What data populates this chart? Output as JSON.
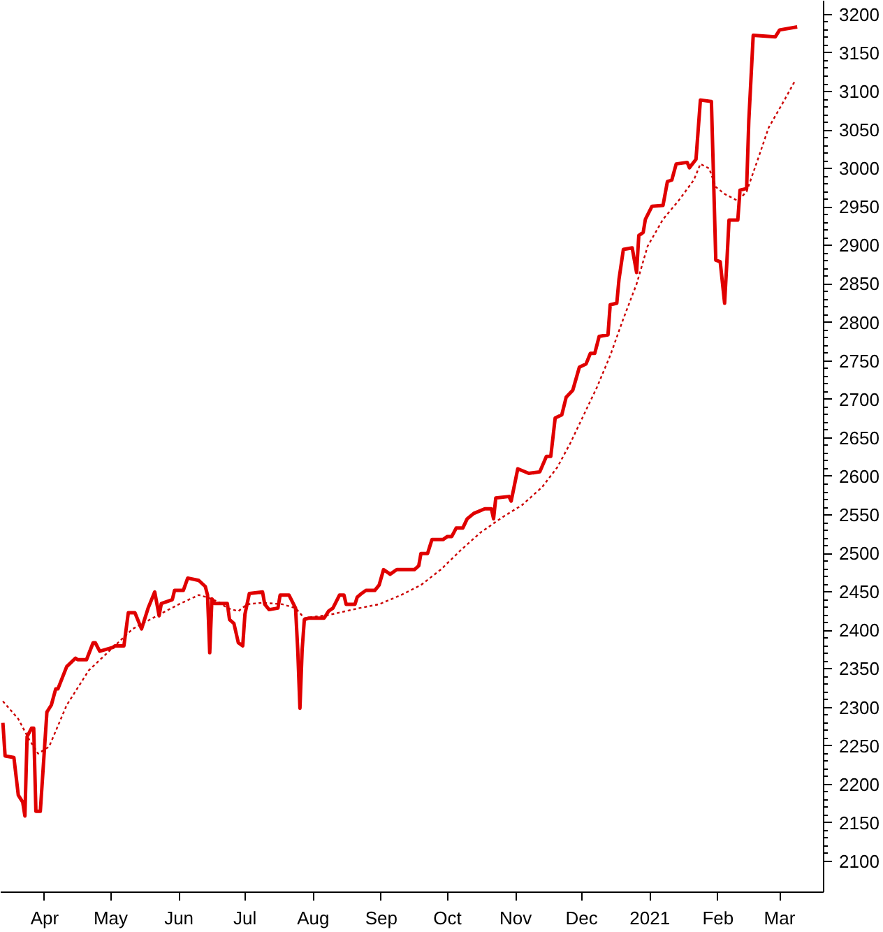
{
  "chart_data": {
    "type": "line",
    "xlim": [
      "2020-03-12",
      "2021-03-21"
    ],
    "ylim": [
      2060,
      3218
    ],
    "yticks": [
      2100,
      2150,
      2200,
      2250,
      2300,
      2350,
      2400,
      2450,
      2500,
      2550,
      2600,
      2650,
      2700,
      2750,
      2800,
      2850,
      2900,
      2950,
      3000,
      3050,
      3100,
      3150,
      3200
    ],
    "xticks": [
      {
        "value": "2020-04-01",
        "label": "Apr"
      },
      {
        "value": "2020-05-01",
        "label": "May"
      },
      {
        "value": "2020-06-01",
        "label": "Jun"
      },
      {
        "value": "2020-07-01",
        "label": "Jul"
      },
      {
        "value": "2020-08-01",
        "label": "Aug"
      },
      {
        "value": "2020-09-01",
        "label": "Sep"
      },
      {
        "value": "2020-10-01",
        "label": "Oct"
      },
      {
        "value": "2020-11-01",
        "label": "Nov"
      },
      {
        "value": "2020-12-01",
        "label": "Dec"
      },
      {
        "value": "2021-01-01",
        "label": "2021"
      },
      {
        "value": "2021-02-01",
        "label": "Feb"
      },
      {
        "value": "2021-03-01",
        "label": "Mar"
      }
    ],
    "grid": false,
    "series": [
      {
        "color": "#e00000",
        "line_style": "solid",
        "x": [
          "2020-03-13",
          "2020-03-14",
          "2020-03-18",
          "2020-03-20",
          "2020-03-22",
          "2020-03-23",
          "2020-03-24",
          "2020-03-26",
          "2020-03-27",
          "2020-03-28",
          "2020-03-30",
          "2020-04-02",
          "2020-04-04",
          "2020-04-06",
          "2020-04-07",
          "2020-04-11",
          "2020-04-15",
          "2020-04-16",
          "2020-04-20",
          "2020-04-23",
          "2020-04-24",
          "2020-04-26",
          "2020-05-02",
          "2020-05-03",
          "2020-05-07",
          "2020-05-09",
          "2020-05-12",
          "2020-05-15",
          "2020-05-18",
          "2020-05-21",
          "2020-05-23",
          "2020-05-24",
          "2020-05-29",
          "2020-05-30",
          "2020-06-03",
          "2020-06-05",
          "2020-06-10",
          "2020-06-13",
          "2020-06-14",
          "2020-06-15",
          "2020-06-16",
          "2020-06-17",
          "2020-06-23",
          "2020-06-24",
          "2020-06-26",
          "2020-06-28",
          "2020-06-30",
          "2020-07-01",
          "2020-07-03",
          "2020-07-09",
          "2020-07-10",
          "2020-07-12",
          "2020-07-16",
          "2020-07-17",
          "2020-07-21",
          "2020-07-24",
          "2020-07-25",
          "2020-07-26",
          "2020-07-27",
          "2020-07-28",
          "2020-07-30",
          "2020-08-06",
          "2020-08-08",
          "2020-08-10",
          "2020-08-13",
          "2020-08-15",
          "2020-08-16",
          "2020-08-20",
          "2020-08-21",
          "2020-08-23",
          "2020-08-25",
          "2020-08-29",
          "2020-08-31",
          "2020-09-02",
          "2020-09-05",
          "2020-09-08",
          "2020-09-16",
          "2020-09-18",
          "2020-09-19",
          "2020-09-22",
          "2020-09-24",
          "2020-09-29",
          "2020-10-01",
          "2020-10-03",
          "2020-10-05",
          "2020-10-08",
          "2020-10-10",
          "2020-10-13",
          "2020-10-18",
          "2020-10-21",
          "2020-10-22",
          "2020-10-23",
          "2020-10-29",
          "2020-10-30",
          "2020-11-02",
          "2020-11-07",
          "2020-11-12",
          "2020-11-15",
          "2020-11-17",
          "2020-11-19",
          "2020-11-22",
          "2020-11-24",
          "2020-11-27",
          "2020-11-30",
          "2020-12-03",
          "2020-12-05",
          "2020-12-07",
          "2020-12-09",
          "2020-12-13",
          "2020-12-14",
          "2020-12-17",
          "2020-12-18",
          "2020-12-20",
          "2020-12-24",
          "2020-12-26",
          "2020-12-27",
          "2020-12-29",
          "2020-12-30",
          "2021-01-02",
          "2021-01-07",
          "2021-01-09",
          "2021-01-11",
          "2021-01-13",
          "2021-01-18",
          "2021-01-19",
          "2021-01-22",
          "2021-01-24",
          "2021-01-29",
          "2021-01-30",
          "2021-01-31",
          "2021-02-02",
          "2021-02-04",
          "2021-02-05",
          "2021-02-06",
          "2021-02-10",
          "2021-02-11",
          "2021-02-14",
          "2021-02-15",
          "2021-02-17",
          "2021-02-27",
          "2021-03-01",
          "2021-03-09"
        ],
        "values": [
          2280,
          2237,
          2235,
          2186,
          2177,
          2159,
          2262,
          2273,
          2273,
          2165,
          2165,
          2294,
          2303,
          2324,
          2324,
          2353,
          2364,
          2362,
          2362,
          2384,
          2384,
          2373,
          2378,
          2380,
          2380,
          2423,
          2423,
          2402,
          2429,
          2450,
          2419,
          2435,
          2440,
          2452,
          2452,
          2468,
          2465,
          2457,
          2446,
          2371,
          2441,
          2435,
          2435,
          2414,
          2409,
          2384,
          2380,
          2421,
          2448,
          2450,
          2434,
          2427,
          2429,
          2446,
          2446,
          2429,
          2375,
          2299,
          2375,
          2414,
          2416,
          2416,
          2425,
          2429,
          2446,
          2446,
          2434,
          2434,
          2443,
          2448,
          2452,
          2452,
          2459,
          2479,
          2473,
          2479,
          2479,
          2484,
          2500,
          2500,
          2518,
          2518,
          2522,
          2522,
          2533,
          2533,
          2545,
          2552,
          2558,
          2558,
          2545,
          2572,
          2574,
          2568,
          2610,
          2604,
          2606,
          2626,
          2626,
          2676,
          2680,
          2703,
          2712,
          2742,
          2746,
          2760,
          2760,
          2782,
          2784,
          2823,
          2825,
          2856,
          2895,
          2897,
          2865,
          2913,
          2917,
          2934,
          2951,
          2952,
          2983,
          2985,
          3006,
          3008,
          3001,
          3012,
          3089,
          3087,
          2985,
          2881,
          2879,
          2825,
          2877,
          2933,
          2933,
          2972,
          2974,
          3062,
          3173,
          3171,
          3180,
          3184
        ]
      },
      {
        "color": "#cc0000",
        "line_style": "dotted",
        "x": [
          "2020-03-13",
          "2020-03-20",
          "2020-03-25",
          "2020-03-29",
          "2020-04-03",
          "2020-04-11",
          "2020-04-21",
          "2020-05-01",
          "2020-05-11",
          "2020-05-22",
          "2020-06-01",
          "2020-06-10",
          "2020-06-14",
          "2020-06-19",
          "2020-06-23",
          "2020-06-28",
          "2020-07-02",
          "2020-07-09",
          "2020-07-18",
          "2020-07-24",
          "2020-07-28",
          "2020-08-08",
          "2020-08-22",
          "2020-08-31",
          "2020-09-10",
          "2020-09-19",
          "2020-09-28",
          "2020-10-07",
          "2020-10-16",
          "2020-10-26",
          "2020-11-04",
          "2020-11-13",
          "2020-11-20",
          "2020-11-26",
          "2020-12-02",
          "2020-12-08",
          "2020-12-14",
          "2020-12-20",
          "2020-12-26",
          "2020-12-31",
          "2021-01-07",
          "2021-01-14",
          "2021-01-21",
          "2021-01-24",
          "2021-01-28",
          "2021-01-31",
          "2021-02-04",
          "2021-02-10",
          "2021-02-14",
          "2021-02-19",
          "2021-02-24",
          "2021-03-02",
          "2021-03-08"
        ],
        "values": [
          2308,
          2285,
          2258,
          2240,
          2249,
          2303,
          2348,
          2375,
          2402,
          2419,
          2434,
          2446,
          2443,
          2437,
          2429,
          2425,
          2434,
          2436,
          2434,
          2429,
          2416,
          2420,
          2429,
          2434,
          2446,
          2459,
          2479,
          2504,
          2527,
          2547,
          2563,
          2586,
          2612,
          2644,
          2680,
          2716,
          2757,
          2805,
          2850,
          2899,
          2934,
          2958,
          2985,
          3006,
          3000,
          2976,
          2967,
          2958,
          2970,
          3011,
          3053,
          3083,
          3114
        ]
      }
    ]
  }
}
